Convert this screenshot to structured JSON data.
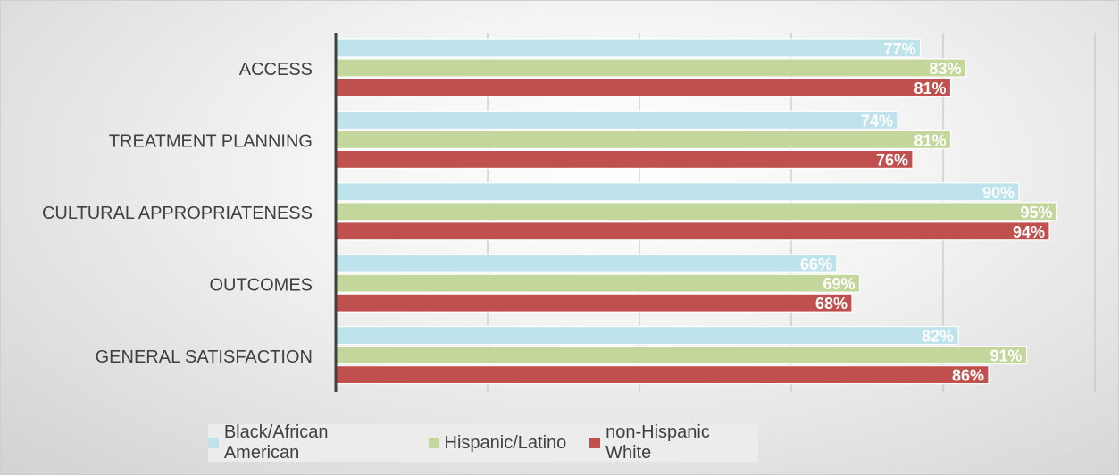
{
  "chart_data": {
    "type": "bar",
    "orientation": "horizontal",
    "categories": [
      "ACCESS",
      "TREATMENT PLANNING",
      "CULTURAL APPROPRIATENESS",
      "OUTCOMES",
      "GENERAL SATISFACTION"
    ],
    "series": [
      {
        "name": "Black/African American",
        "values": [
          77,
          74,
          90,
          66,
          82
        ],
        "labels": [
          "77%",
          "74%",
          "90%",
          "66%",
          "82%"
        ],
        "color": "#bee3ec"
      },
      {
        "name": "Hispanic/Latino",
        "values": [
          83,
          81,
          95,
          69,
          91
        ],
        "labels": [
          "83%",
          "81%",
          "95%",
          "69%",
          "91%"
        ],
        "color": "#c3d69b"
      },
      {
        "name": "non-Hispanic White",
        "values": [
          81,
          76,
          94,
          68,
          86
        ],
        "labels": [
          "81%",
          "76%",
          "94%",
          "68%",
          "86%"
        ],
        "color": "#c0504d"
      }
    ],
    "xlim": [
      0,
      100
    ],
    "grid": true,
    "legend_position": "bottom",
    "value_axis_labels_shown": false
  }
}
